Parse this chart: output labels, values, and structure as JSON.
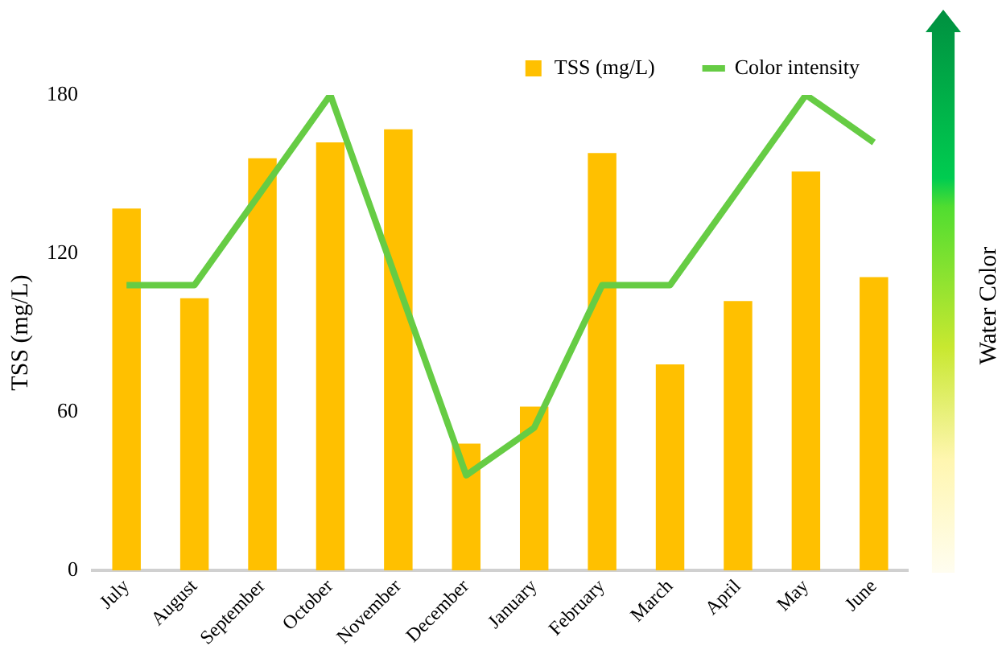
{
  "chart_data": {
    "type": "bar",
    "ylabel": "TSS (mg/L)",
    "y2label": "Water Color",
    "categories": [
      "July",
      "August",
      "September",
      "October",
      "November",
      "December",
      "January",
      "February",
      "March",
      "April",
      "May",
      "June"
    ],
    "series": [
      {
        "name": "TSS (mg/L)",
        "color": "#ffc000",
        "values": [
          137,
          103,
          156,
          162,
          167,
          48,
          62,
          158,
          78,
          102,
          151,
          111
        ]
      },
      {
        "name": "Color intensity",
        "type": "line",
        "color": "#66cc44",
        "values": [
          108,
          108,
          144,
          180,
          108,
          36,
          54,
          108,
          108,
          144,
          180,
          162
        ]
      }
    ],
    "ylim": [
      0,
      180
    ],
    "yticks": [
      0,
      60,
      120,
      180
    ],
    "grid": false,
    "legend": "top",
    "marker": "none"
  }
}
